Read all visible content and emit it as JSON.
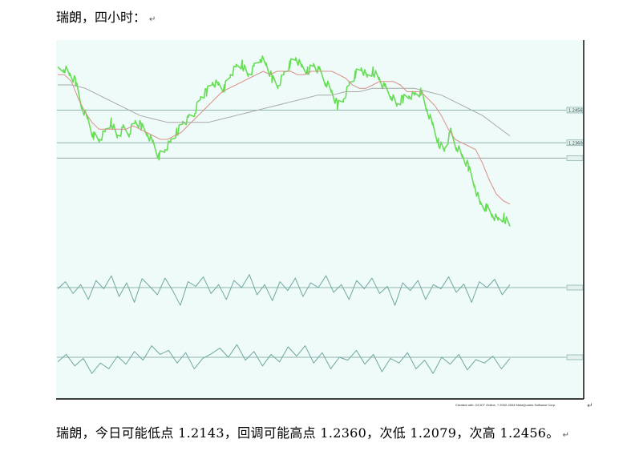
{
  "header": {
    "title": "瑞朗，四小时：",
    "mark": "↵"
  },
  "footer": {
    "text": "瑞朗，今日可能低点 1.2143，回调可能高点 1.2360，次低 1.2079，次高 1.2456。",
    "mark": "↵"
  },
  "chart_data": [
    {
      "type": "line",
      "panel": "price",
      "series": [
        {
          "role": "price",
          "color": "#66dd55",
          "values": [
            1.257,
            1.258,
            1.256,
            1.254,
            1.247,
            1.243,
            1.238,
            1.237,
            1.239,
            1.242,
            1.238,
            1.24,
            1.239,
            1.242,
            1.241,
            1.239,
            1.236,
            1.232,
            1.234,
            1.236,
            1.239,
            1.242,
            1.243,
            1.245,
            1.249,
            1.251,
            1.254,
            1.253,
            1.252,
            1.256,
            1.258,
            1.259,
            1.256,
            1.258,
            1.261,
            1.259,
            1.255,
            1.253,
            1.256,
            1.259,
            1.261,
            1.258,
            1.257,
            1.259,
            1.257,
            1.254,
            1.251,
            1.247,
            1.249,
            1.253,
            1.256,
            1.258,
            1.255,
            1.257,
            1.255,
            1.252,
            1.25,
            1.247,
            1.249,
            1.25,
            1.25,
            1.251,
            1.246,
            1.241,
            1.236,
            1.234,
            1.239,
            1.235,
            1.232,
            1.229,
            1.224,
            1.218,
            1.217,
            1.215,
            1.213,
            1.214,
            1.212
          ]
        },
        {
          "role": "short moving average",
          "color": "#d9908a",
          "values": [
            1.256,
            1.256,
            1.254,
            1.249,
            1.245,
            1.242,
            1.24,
            1.24,
            1.24,
            1.24,
            1.24,
            1.241,
            1.24,
            1.239,
            1.238,
            1.237,
            1.237,
            1.238,
            1.239,
            1.241,
            1.243,
            1.245,
            1.247,
            1.249,
            1.251,
            1.252,
            1.253,
            1.254,
            1.255,
            1.256,
            1.257,
            1.256,
            1.257,
            1.257,
            1.257,
            1.256,
            1.256,
            1.257,
            1.257,
            1.257,
            1.257,
            1.256,
            1.255,
            1.253,
            1.252,
            1.252,
            1.253,
            1.254,
            1.254,
            1.254,
            1.253,
            1.251,
            1.251,
            1.251,
            1.249,
            1.247,
            1.244,
            1.24,
            1.237,
            1.236,
            1.235,
            1.234,
            1.23,
            1.225,
            1.221,
            1.219,
            1.218
          ]
        },
        {
          "role": "long moving average",
          "color": "#a8a8a8",
          "values": [
            1.253,
            1.253,
            1.252,
            1.25,
            1.248,
            1.246,
            1.244,
            1.243,
            1.242,
            1.242,
            1.242,
            1.242,
            1.243,
            1.244,
            1.245,
            1.246,
            1.247,
            1.248,
            1.249,
            1.25,
            1.25,
            1.251,
            1.251,
            1.252,
            1.252,
            1.252,
            1.252,
            1.251,
            1.25,
            1.248,
            1.246,
            1.244,
            1.241,
            1.238
          ]
        }
      ],
      "levels": [
        {
          "label": "1.2456",
          "value": 1.2456,
          "color": "#8fb5b0"
        },
        {
          "label": "1.2360",
          "value": 1.236,
          "color": "#8fb5b0"
        },
        {
          "label": "",
          "value": 1.2315,
          "color": "#9aa5a5"
        }
      ],
      "ylim": [
        1.205,
        1.265
      ]
    },
    {
      "type": "line",
      "panel": "oscillator-1",
      "series": [
        {
          "color": "#6fa7a0",
          "values": [
            48,
            60,
            40,
            55,
            30,
            62,
            48,
            70,
            35,
            58,
            25,
            65,
            52,
            38,
            66,
            45,
            20,
            60,
            52,
            68,
            40,
            55,
            30,
            62,
            50,
            72,
            38,
            55,
            28,
            60,
            45,
            66,
            35,
            58,
            50,
            70,
            42,
            55,
            30,
            62,
            48,
            66,
            40,
            52,
            20,
            58,
            45,
            62,
            30,
            55,
            48,
            68,
            42,
            56,
            25,
            60,
            50,
            64,
            38,
            55
          ]
        }
      ],
      "levels": [
        {
          "label": "",
          "value": 50,
          "color": "#8fb5b0"
        }
      ],
      "ylim": [
        0,
        100
      ]
    },
    {
      "type": "line",
      "panel": "oscillator-2",
      "series": [
        {
          "color": "#6fa7a0",
          "values": [
            42,
            55,
            35,
            48,
            22,
            40,
            30,
            52,
            38,
            60,
            45,
            70,
            55,
            62,
            40,
            58,
            30,
            48,
            56,
            66,
            50,
            72,
            45,
            60,
            35,
            55,
            42,
            68,
            52,
            70,
            40,
            58,
            30,
            50,
            45,
            62,
            38,
            55,
            25,
            48,
            40,
            58,
            30,
            45,
            22,
            50,
            38,
            55,
            28,
            46,
            40,
            52,
            30,
            48
          ]
        }
      ],
      "levels": [
        {
          "label": "",
          "value": 50,
          "color": "#8fb5b0"
        }
      ],
      "ylim": [
        0,
        100
      ]
    }
  ],
  "chart_meta": {
    "credit": "Created with: GCICT Online, ? 2002-2004 MetaQuotes Software Corp.",
    "bg": "#effbf9",
    "frame": "#000000"
  }
}
